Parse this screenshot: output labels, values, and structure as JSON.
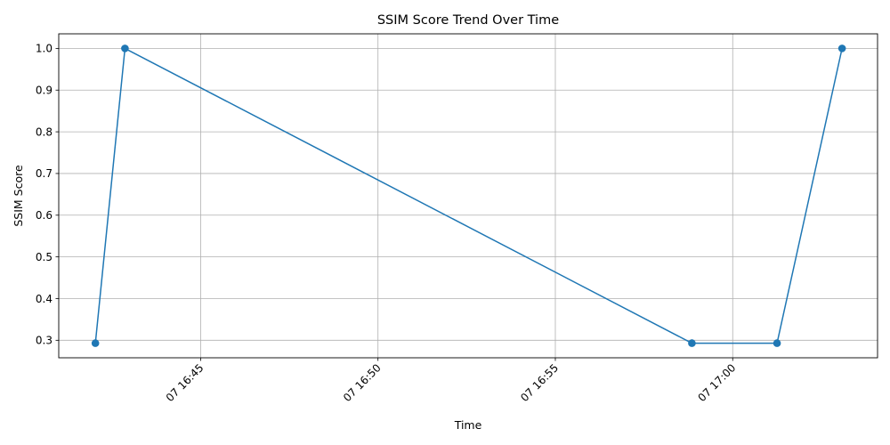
{
  "chart_data": {
    "type": "line",
    "title": "SSIM Score Trend Over Time",
    "xlabel": "Time",
    "ylabel": "SSIM Score",
    "x_day_prefix": "07",
    "xlim": [
      "16:41:00",
      "17:04:05"
    ],
    "ylim": [
      0.258,
      1.035
    ],
    "x_ticks": [
      "16:45",
      "16:50",
      "16:55",
      "17:00"
    ],
    "y_ticks": [
      0.3,
      0.4,
      0.5,
      0.6,
      0.7,
      0.8,
      0.9,
      1.0
    ],
    "y_tick_labels": [
      "0.3",
      "0.4",
      "0.5",
      "0.6",
      "0.7",
      "0.8",
      "0.9",
      "1.0"
    ],
    "grid": true,
    "series": [
      {
        "color": "#1f77b4",
        "marker": "circle",
        "points": [
          {
            "x": "16:42:02",
            "y": 0.293
          },
          {
            "x": "16:42:52",
            "y": 1.0
          },
          {
            "x": "16:58:51",
            "y": 0.293
          },
          {
            "x": "17:01:15",
            "y": 0.293
          },
          {
            "x": "17:03:05",
            "y": 1.0
          }
        ]
      }
    ]
  }
}
